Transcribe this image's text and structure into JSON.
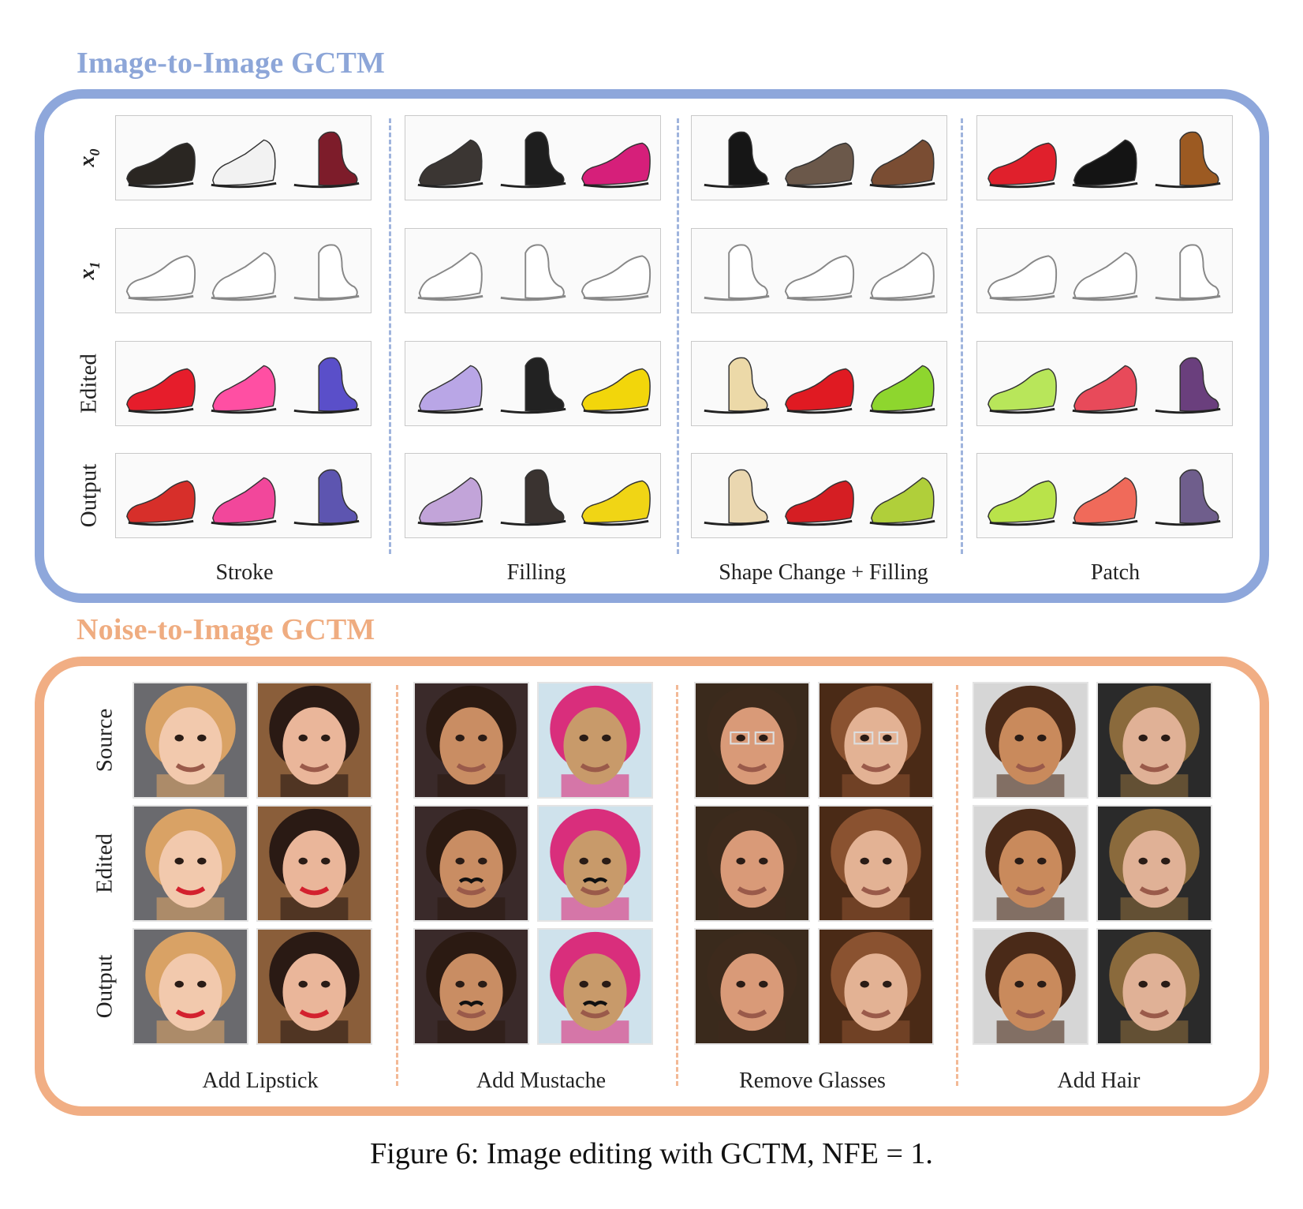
{
  "image_to_image": {
    "title": "Image-to-Image GCTM",
    "row_labels": [
      {
        "main": "x",
        "sub": "0"
      },
      {
        "main": "x",
        "sub": "1"
      },
      {
        "main": "Edited",
        "sub": ""
      },
      {
        "main": "Output",
        "sub": ""
      }
    ],
    "column_labels": [
      "Stroke",
      "Filling",
      "Shape Change + Filling",
      "Patch"
    ],
    "colors": {
      "x0": [
        [
          "#2a2622",
          "#f2f2f2",
          "#7d1c2a"
        ],
        [
          "#3b3633",
          "#1e1e1e",
          "#d61f7a"
        ],
        [
          "#161616",
          "#6b584a",
          "#7a4d33"
        ],
        [
          "#e0202c",
          "#141414",
          "#9c5a22"
        ]
      ],
      "x1": [
        [
          "#ffffff",
          "#ffffff",
          "#ffffff"
        ],
        [
          "#ffffff",
          "#ffffff",
          "#ffffff"
        ],
        [
          "#ffffff",
          "#ffffff",
          "#ffffff"
        ],
        [
          "#ffffff",
          "#ffffff",
          "#ffffff"
        ]
      ],
      "edited": [
        [
          "#e61d2b",
          "#ff4fa3",
          "#5a4fc9"
        ],
        [
          "#b9a6e6",
          "#222222",
          "#f2d60b"
        ],
        [
          "#ecd9a8",
          "#e01a22",
          "#8ed62e"
        ],
        [
          "#b8e65a",
          "#e84a5a",
          "#6a3f7d"
        ]
      ],
      "output": [
        [
          "#d72f2a",
          "#f2479b",
          "#5d55b0"
        ],
        [
          "#c2a4d9",
          "#3a3330",
          "#f0d515"
        ],
        [
          "#ead7b0",
          "#d51e23",
          "#b0cf3a"
        ],
        [
          "#b9e34a",
          "#f06a5a",
          "#6f5e8c"
        ]
      ]
    }
  },
  "noise_to_image": {
    "title": "Noise-to-Image GCTM",
    "row_labels": [
      "Source",
      "Edited",
      "Output"
    ],
    "column_labels": [
      "Add Lipstick",
      "Add Mustache",
      "Remove Glasses",
      "Add Hair"
    ],
    "faces": [
      [
        {
          "skin": "#f2c9ad",
          "hair": "#d9a265",
          "bg": "#6a6a6e"
        },
        {
          "skin": "#eab69a",
          "hair": "#2a1a14",
          "bg": "#8a5e3a"
        }
      ],
      [
        {
          "skin": "#c98d63",
          "hair": "#2b1a12",
          "bg": "#3a2a2a"
        },
        {
          "skin": "#c89a6a",
          "hair": "#d92e7c",
          "bg": "#cfe2ec"
        }
      ],
      [
        {
          "skin": "#d99a78",
          "hair": "#3d2a1c",
          "bg": "#3a2a1c"
        },
        {
          "skin": "#e3b294",
          "hair": "#8a5230",
          "bg": "#4a2a16"
        }
      ],
      [
        {
          "skin": "#c98a5c",
          "hair": "#4a2a18",
          "bg": "#d6d6d6"
        },
        {
          "skin": "#e0b196",
          "hair": "#8a6a3c",
          "bg": "#2a2a2a"
        }
      ]
    ]
  },
  "caption": "Figure 6: Image editing with GCTM, NFE = 1."
}
